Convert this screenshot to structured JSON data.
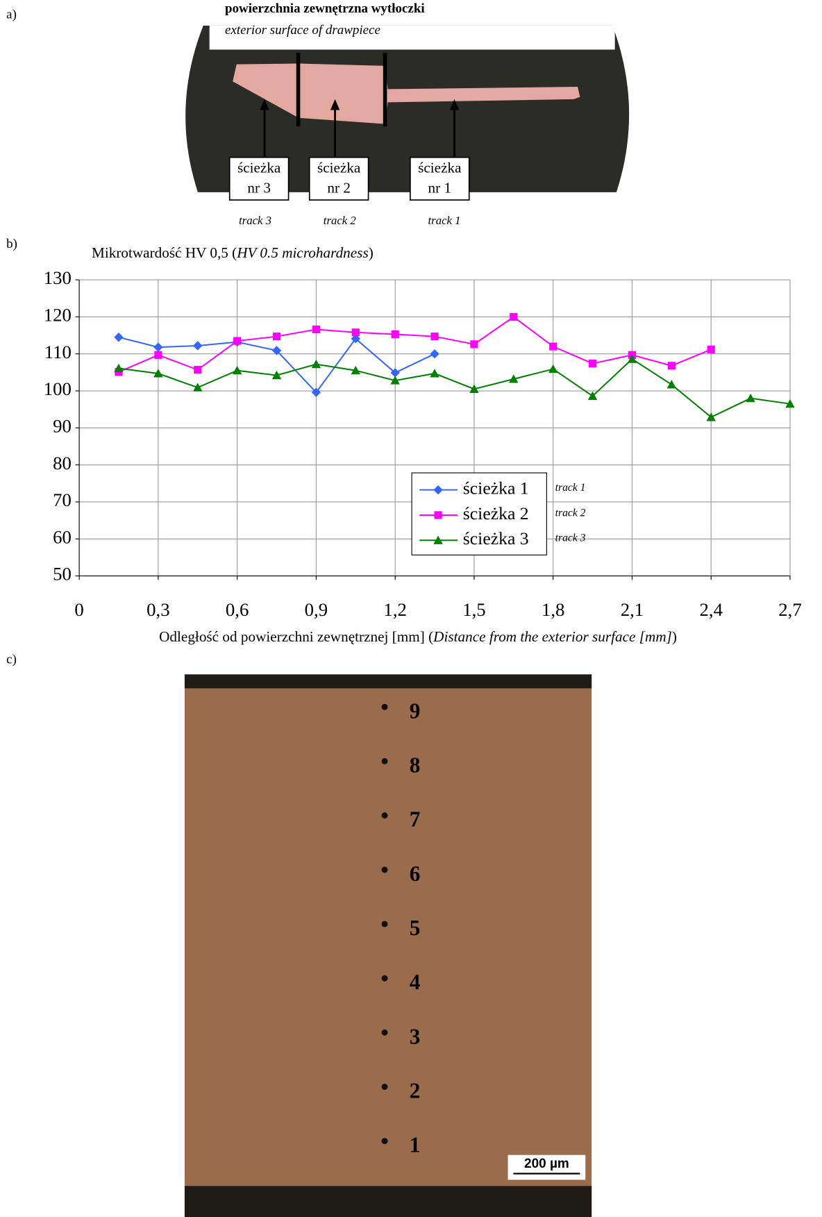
{
  "figure": {
    "panel_labels": [
      "a)",
      "b)",
      "c)"
    ],
    "photo_a": {
      "heading": "powierzchnia zewnętrzna wytłoczki",
      "heading_en": "exterior surface of drawpiece",
      "boxes": [
        [
          "ścieżka",
          "nr 3"
        ],
        [
          "ścieżka",
          "nr 2"
        ],
        [
          "ścieżka",
          "nr 1"
        ]
      ],
      "tracks": [
        "track 3",
        "track 2",
        "track 1"
      ]
    },
    "photo_c": {
      "points": [
        "1",
        "2",
        "3",
        "4",
        "5",
        "6",
        "7",
        "8",
        "9"
      ],
      "scale_bar": "200 µm"
    }
  },
  "chart_data": {
    "type": "line",
    "title_parts": [
      "Mikrotwardość HV 0,5 (",
      "HV 0.5 microhardness",
      ")"
    ],
    "xlabel_parts": [
      "Odległość od powierzchni zewnętrznej [mm]  (",
      "Distance from the exterior surface [mm]",
      ")"
    ],
    "xlim": [
      0,
      2.7
    ],
    "xticks": [
      0,
      {
        "value": 0.3,
        "label": "0,3"
      },
      {
        "value": 0.6,
        "label": "0,6"
      },
      {
        "value": 0.9,
        "label": "0,9"
      },
      {
        "value": 1.2,
        "label": "1,2"
      },
      {
        "value": 1.5,
        "label": "1,5"
      },
      {
        "value": 1.8,
        "label": "1,8"
      },
      {
        "value": 2.1,
        "label": "2,1"
      },
      {
        "value": 2.4,
        "label": "2,4"
      },
      {
        "value": 2.7,
        "label": "2,7"
      }
    ],
    "ylim": [
      50,
      130
    ],
    "yticks": [
      50,
      60,
      70,
      80,
      90,
      100,
      110,
      120,
      130
    ],
    "grid": true,
    "legend_notes": [
      "track 1",
      "track 2",
      "track 3"
    ],
    "series": [
      {
        "name": "ścieżka 1",
        "color": "#3366ff",
        "marker": "diamond",
        "x": [
          0.15,
          0.3,
          0.45,
          0.6,
          0.75,
          0.9,
          1.05,
          1.2,
          1.35
        ],
        "values": [
          114.5,
          111.8,
          112.2,
          113.2,
          110.9,
          99.6,
          114.1,
          104.9,
          110
        ]
      },
      {
        "name": "ścieżka 2",
        "color": "#ff00ff",
        "marker": "square",
        "x": [
          0.15,
          0.3,
          0.45,
          0.6,
          0.75,
          0.9,
          1.05,
          1.2,
          1.35,
          1.5,
          1.65,
          1.8,
          1.95,
          2.1,
          2.25,
          2.4
        ],
        "values": [
          105.1,
          109.7,
          105.7,
          113.5,
          114.7,
          116.6,
          115.8,
          115.3,
          114.7,
          112.6,
          120,
          112,
          107.4,
          109.7,
          106.8,
          111.2
        ]
      },
      {
        "name": "ścieżka 3",
        "color": "#008000",
        "marker": "triangle",
        "x": [
          0.15,
          0.3,
          0.45,
          0.6,
          0.75,
          0.9,
          1.05,
          1.2,
          1.35,
          1.5,
          1.65,
          1.8,
          1.95,
          2.1,
          2.25,
          2.4,
          2.55,
          2.7
        ],
        "values": [
          106.1,
          104.7,
          100.9,
          105.5,
          104.2,
          107.2,
          105.5,
          102.8,
          104.7,
          100.5,
          103.2,
          105.9,
          98.6,
          108.6,
          101.7,
          92.9,
          98,
          96.5
        ]
      }
    ]
  }
}
